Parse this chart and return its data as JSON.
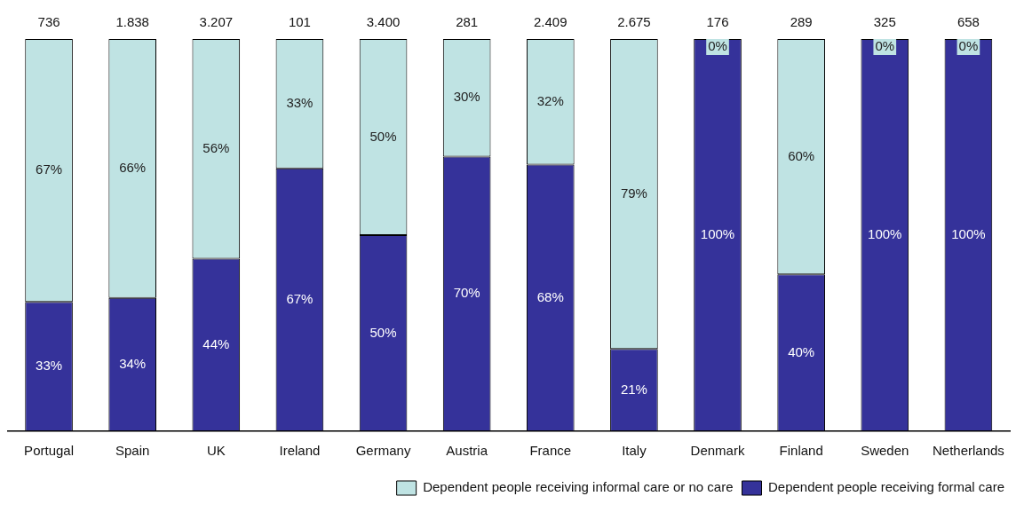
{
  "chart_data": {
    "type": "bar",
    "stacked": true,
    "tick_labels": "x",
    "grid": false,
    "legend": "bottom",
    "categories": [
      "Portugal",
      "Spain",
      "UK",
      "Ireland",
      "Germany",
      "Austria",
      "France",
      "Italy",
      "Denmark",
      "Finland",
      "Sweden",
      "Netherlands"
    ],
    "series": [
      {
        "name": "Dependent people receiving formal care",
        "color": "#35329a",
        "values": [
          33,
          34,
          44,
          67,
          50,
          70,
          68,
          21,
          100,
          40,
          100,
          100
        ],
        "value_labels": [
          "33%",
          "34%",
          "44%",
          "67%",
          "50%",
          "70%",
          "68%",
          "21%",
          "100%",
          "40%",
          "100%",
          "100%"
        ]
      },
      {
        "name": "Dependent people receiving informal care or no care",
        "color": "#bfe3e3",
        "values": [
          67,
          66,
          56,
          33,
          50,
          30,
          32,
          79,
          0,
          60,
          0,
          0
        ],
        "value_labels": [
          "67%",
          "66%",
          "56%",
          "33%",
          "50%",
          "30%",
          "32%",
          "79%",
          "0%",
          "60%",
          "0%",
          "0%"
        ]
      }
    ],
    "annotations": [
      "736",
      "1.838",
      "3.207",
      "101",
      "3.400",
      "281",
      "2.409",
      "2.675",
      "176",
      "289",
      "325",
      "658"
    ]
  }
}
